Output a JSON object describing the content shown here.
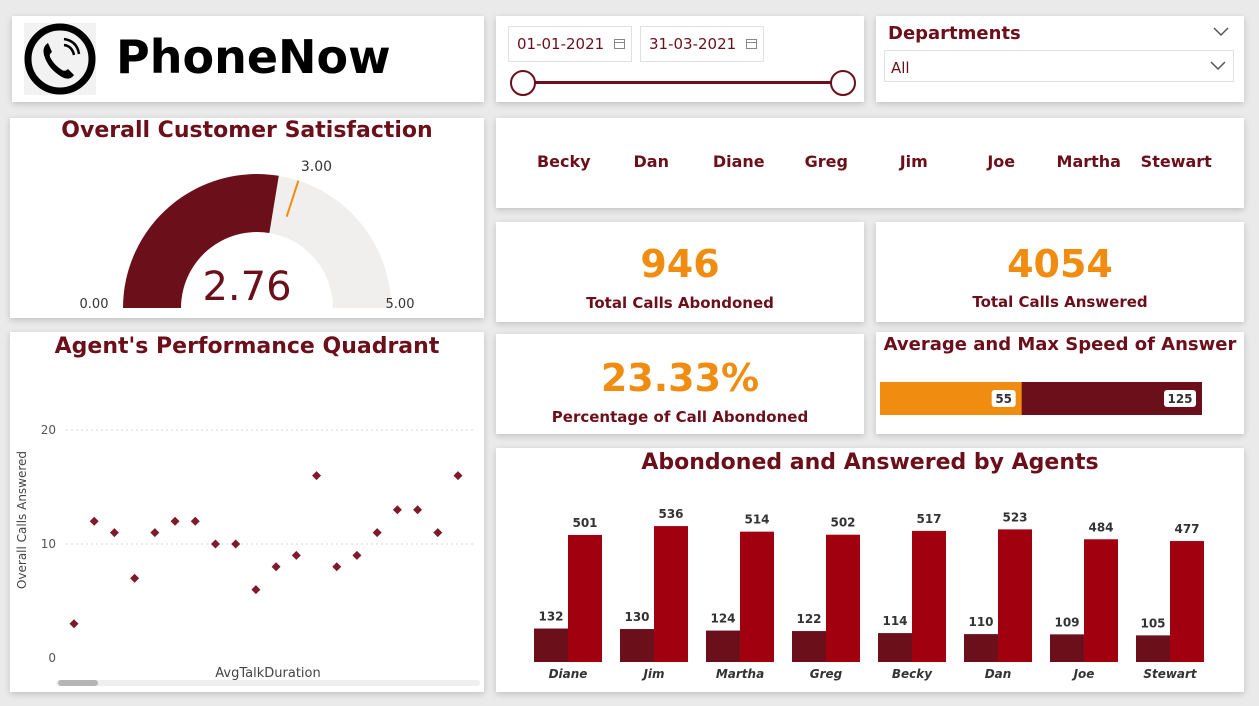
{
  "brand": {
    "name": "PhoneNow",
    "logo_icon": "phone-icon"
  },
  "date_filter": {
    "start": "01-01-2021",
    "end": "31-03-2021"
  },
  "departments": {
    "label": "Departments",
    "value": "All"
  },
  "agents_filter": [
    "Becky",
    "Dan",
    "Diane",
    "Greg",
    "Jim",
    "Joe",
    "Martha",
    "Stewart"
  ],
  "kpis": {
    "abandoned": {
      "value": "946",
      "label": "Total Calls Abondoned"
    },
    "answered": {
      "value": "4054",
      "label": "Total Calls Answered"
    },
    "pct_abandoned": {
      "value": "23.33%",
      "label": "Percentage of Call Abondoned"
    }
  },
  "colors": {
    "maroon": "#6b0f1a",
    "red": "#a1000f",
    "orange": "#f08c10",
    "track": "#f1efed"
  },
  "chart_data": [
    {
      "type": "gauge",
      "title": "Overall Customer Satisfaction",
      "value": 2.76,
      "value_label": "2.76",
      "min": 0,
      "min_label": "0.00",
      "max": 5,
      "max_label": "5.00",
      "target": 3.0,
      "target_label": "3.00"
    },
    {
      "type": "scatter",
      "title": "Agent's Performance Quadrant",
      "xlabel": "AvgTalkDuration",
      "ylabel": "Overall Calls Answered",
      "ylim": [
        0,
        20
      ],
      "yticks": [
        "0",
        "10",
        "20"
      ],
      "y": [
        3,
        12,
        11,
        7,
        11,
        12,
        12,
        10,
        10,
        6,
        8,
        9,
        16,
        8,
        9,
        11,
        13,
        13,
        11,
        16
      ]
    },
    {
      "type": "bar",
      "title": "Average and Max Speed of Answer",
      "series": [
        {
          "name": "Average",
          "value": 55,
          "label": "55"
        },
        {
          "name": "Max",
          "value": 125,
          "label": "125"
        }
      ]
    },
    {
      "type": "bar",
      "title": "Abondoned and Answered by Agents",
      "categories": [
        "Diane",
        "Jim",
        "Martha",
        "Greg",
        "Becky",
        "Dan",
        "Joe",
        "Stewart"
      ],
      "series": [
        {
          "values": [
            132,
            130,
            124,
            122,
            114,
            110,
            109,
            105
          ]
        },
        {
          "values": [
            501,
            536,
            514,
            502,
            517,
            523,
            484,
            477
          ]
        }
      ],
      "ylim": [
        0,
        560
      ]
    }
  ]
}
